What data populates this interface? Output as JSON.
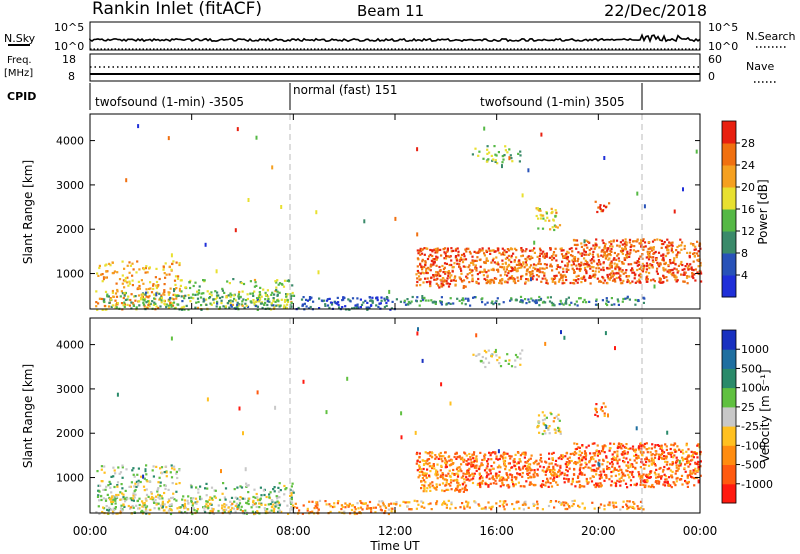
{
  "header": {
    "station": "Rankin Inlet (fitACF)",
    "beam": "Beam 11",
    "date": "22/Dec/2018"
  },
  "noise_panel": {
    "left_label": "N.Sky",
    "right_label": "N.Search",
    "left_ticks": [
      "10^5",
      "10^0"
    ],
    "right_ticks": [
      "10^5",
      "10^0"
    ]
  },
  "freq_panel": {
    "left_label_line1": "Freq.",
    "left_label_line2": "[MHz]",
    "right_label": "Nave",
    "left_ticks": [
      "18",
      "8"
    ],
    "right_ticks": [
      "60",
      "0"
    ]
  },
  "cpid": {
    "label": "CPID",
    "segments": [
      "twofsound (1-min) -3505",
      "normal (fast) 151",
      "twofsound (1-min) 3505"
    ]
  },
  "x_axis": {
    "label": "Time UT",
    "ticks": [
      "00:00",
      "04:00",
      "08:00",
      "12:00",
      "16:00",
      "20:00",
      "00:00"
    ]
  },
  "colors": {
    "power": [
      "#1f2fd8",
      "#2852b8",
      "#3a8a6a",
      "#55b845",
      "#e8e030",
      "#f5a020",
      "#f07010",
      "#e82010"
    ],
    "velocity": [
      "#ff1a10",
      "#ff5a10",
      "#ff8c10",
      "#ffc020",
      "#c8c8c8",
      "#60c040",
      "#2a8a6a",
      "#1f6fa0",
      "#1830c0"
    ]
  },
  "chart_data": [
    {
      "type": "heatmap",
      "name": "power",
      "ylabel": "Slant Range [km]",
      "yticks": [
        "1000",
        "2000",
        "3000",
        "4000"
      ],
      "ylim": [
        200,
        4600
      ],
      "xlim_hours": [
        0,
        24
      ],
      "colorbar": {
        "label": "Power [dB]",
        "ticks": [
          "4",
          "8",
          "12",
          "16",
          "20",
          "24",
          "28"
        ],
        "range": [
          0,
          32
        ]
      },
      "regions": [
        {
          "t0": 0.2,
          "t1": 3.5,
          "r0": 200,
          "r1": 1300,
          "level": 0.7,
          "density": 0.35
        },
        {
          "t0": 3.5,
          "t1": 8.0,
          "r0": 200,
          "r1": 900,
          "level": 0.5,
          "density": 0.25
        },
        {
          "t0": 0.5,
          "t1": 8.0,
          "r0": 200,
          "r1": 600,
          "level": 0.4,
          "density": 0.5
        },
        {
          "t0": 8.0,
          "t1": 12.0,
          "r0": 200,
          "r1": 500,
          "level": 0.2,
          "density": 0.6
        },
        {
          "t0": 12.0,
          "t1": 21.8,
          "r0": 300,
          "r1": 500,
          "level": 0.3,
          "density": 0.5
        },
        {
          "t0": 12.8,
          "t1": 14.8,
          "r0": 700,
          "r1": 1600,
          "level": 0.85,
          "density": 0.8
        },
        {
          "t0": 14.8,
          "t1": 19.0,
          "r0": 800,
          "r1": 1600,
          "level": 0.8,
          "density": 0.75
        },
        {
          "t0": 19.0,
          "t1": 24.0,
          "r0": 800,
          "r1": 1800,
          "level": 0.82,
          "density": 0.75
        },
        {
          "t0": 17.5,
          "t1": 18.5,
          "r0": 2000,
          "r1": 2500,
          "level": 0.6,
          "density": 0.5
        },
        {
          "t0": 19.8,
          "t1": 20.4,
          "r0": 2400,
          "r1": 2700,
          "level": 0.8,
          "density": 0.5
        },
        {
          "t0": 15.0,
          "t1": 17.0,
          "r0": 3500,
          "r1": 3900,
          "level": 0.45,
          "density": 0.3
        }
      ]
    },
    {
      "type": "heatmap",
      "name": "velocity",
      "ylabel": "Slant Range [km]",
      "yticks": [
        "1000",
        "2000",
        "3000",
        "4000"
      ],
      "ylim": [
        200,
        4600
      ],
      "xlim_hours": [
        0,
        24
      ],
      "colorbar": {
        "label": "Velocity [m s⁻¹]",
        "ticks": [
          "1000",
          "500",
          "100",
          "25",
          "-25",
          "-100",
          "-500",
          "-1000"
        ],
        "range": [
          -1500,
          1500
        ]
      },
      "regions": [
        {
          "t0": 0.2,
          "t1": 3.5,
          "r0": 200,
          "r1": 1300,
          "level": 0.55,
          "density": 0.35
        },
        {
          "t0": 3.5,
          "t1": 8.0,
          "r0": 200,
          "r1": 900,
          "level": 0.6,
          "density": 0.25
        },
        {
          "t0": 0.5,
          "t1": 8.0,
          "r0": 200,
          "r1": 600,
          "level": 0.5,
          "density": 0.5
        },
        {
          "t0": 8.0,
          "t1": 12.0,
          "r0": 200,
          "r1": 500,
          "level": 0.3,
          "density": 0.6
        },
        {
          "t0": 12.0,
          "t1": 21.8,
          "r0": 300,
          "r1": 500,
          "level": 0.3,
          "density": 0.5
        },
        {
          "t0": 12.8,
          "t1": 14.8,
          "r0": 700,
          "r1": 1600,
          "level": 0.25,
          "density": 0.8
        },
        {
          "t0": 14.8,
          "t1": 19.0,
          "r0": 800,
          "r1": 1600,
          "level": 0.2,
          "density": 0.75
        },
        {
          "t0": 19.0,
          "t1": 24.0,
          "r0": 800,
          "r1": 1800,
          "level": 0.2,
          "density": 0.75
        },
        {
          "t0": 17.5,
          "t1": 18.5,
          "r0": 2000,
          "r1": 2500,
          "level": 0.45,
          "density": 0.5
        },
        {
          "t0": 19.8,
          "t1": 20.4,
          "r0": 2400,
          "r1": 2700,
          "level": 0.2,
          "density": 0.5
        },
        {
          "t0": 15.0,
          "t1": 17.0,
          "r0": 3500,
          "r1": 3900,
          "level": 0.5,
          "density": 0.3
        }
      ]
    }
  ]
}
